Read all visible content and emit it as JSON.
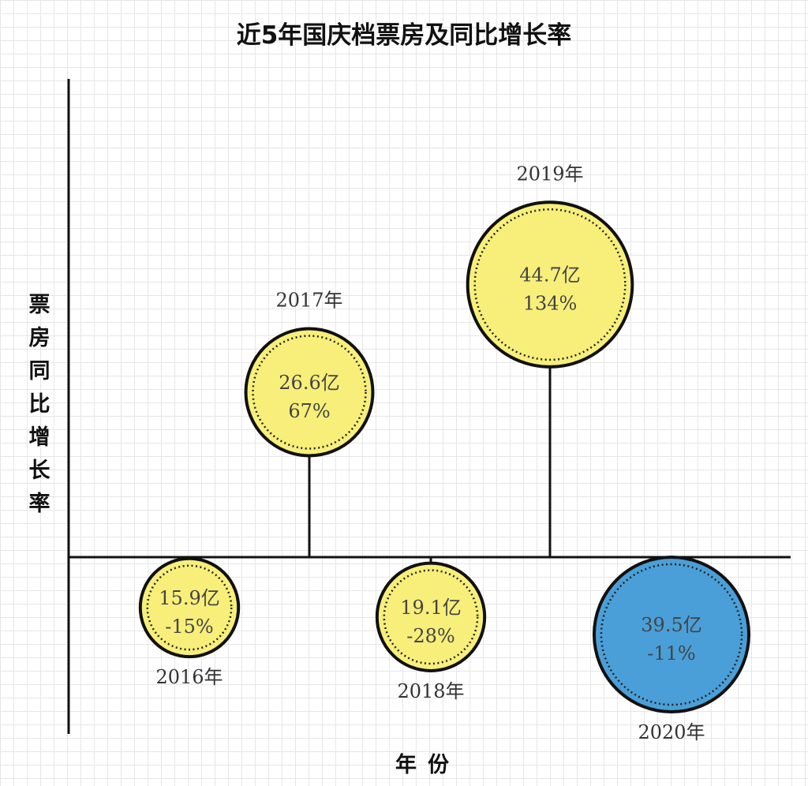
{
  "chart_data": {
    "type": "bubble",
    "title": "近5年国庆档票房及同比增长率",
    "xlabel": "年份",
    "ylabel": "票房同比增长率",
    "points": [
      {
        "year": "2016年",
        "box_office": 15.9,
        "box_office_label": "15.9亿",
        "growth": -15,
        "growth_label": "-15%"
      },
      {
        "year": "2017年",
        "box_office": 26.6,
        "box_office_label": "26.6亿",
        "growth": 67,
        "growth_label": "67%"
      },
      {
        "year": "2018年",
        "box_office": 19.1,
        "box_office_label": "19.1亿",
        "growth": -28,
        "growth_label": "-28%"
      },
      {
        "year": "2019年",
        "box_office": 44.7,
        "box_office_label": "44.7亿",
        "growth": 134,
        "growth_label": "134%"
      },
      {
        "year": "2020年",
        "box_office": 39.5,
        "box_office_label": "39.5亿",
        "growth": -11,
        "growth_label": "-11%"
      }
    ],
    "colors": {
      "default_fill": "#f7ef7a",
      "highlight_fill": "#4a9fd8",
      "outline": "#111111",
      "highlight_year": "2020年"
    }
  }
}
